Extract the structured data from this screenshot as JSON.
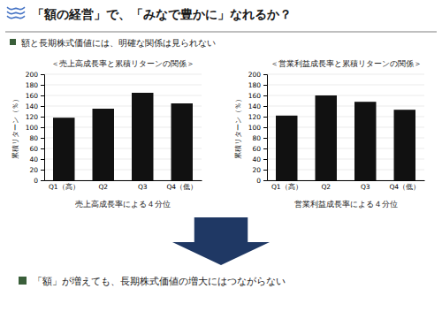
{
  "title": "「額の経営」で、「みなで豊かに」なれるか？",
  "subtitle": "額と長期株式価値には、明確な関係は見られない",
  "annotations": [
    "「額」が増えても、長期株式価値の増大にはつながらない"
  ],
  "chart_data": [
    {
      "type": "bar",
      "title": "＜売上高成長率と累積リターンの関係＞",
      "xlabel": "売上高成長率による４分位",
      "ylabel": "累積リターン（％）",
      "categories": [
        "Q1（高）",
        "Q2",
        "Q3",
        "Q4（低）"
      ],
      "values": [
        118,
        135,
        165,
        145
      ],
      "color": "#111111",
      "ylim": [
        0,
        200
      ],
      "yticks": [
        0,
        20,
        40,
        60,
        80,
        100,
        120,
        140,
        160,
        180,
        200
      ],
      "grid": true
    },
    {
      "type": "bar",
      "title": "＜営業利益成長率と累積リターンの関係＞",
      "xlabel": "営業利益成長率による４分位",
      "ylabel": "累積リターン（％）",
      "categories": [
        "Q1（高）",
        "Q2",
        "Q3",
        "Q4（低）"
      ],
      "values": [
        122,
        160,
        148,
        133
      ],
      "color": "#111111",
      "ylim": [
        0,
        200
      ],
      "yticks": [
        0,
        20,
        40,
        60,
        80,
        100,
        120,
        140,
        160,
        180,
        200
      ],
      "grid": true
    }
  ]
}
